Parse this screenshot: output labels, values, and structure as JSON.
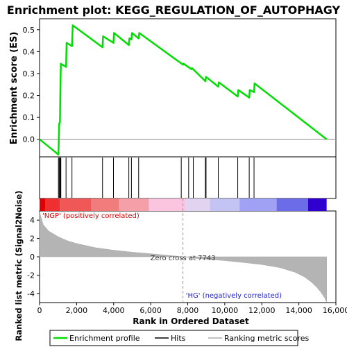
{
  "chart_data": {
    "type": "line",
    "title": "Enrichment plot: KEGG_REGULATION_OF_AUTOPHAGY",
    "xlabel": "Rank in Ordered Dataset",
    "ylabel_top": "Enrichment score (ES)",
    "ylabel_bottom": "Ranked list metric (Signal2Noise)",
    "xlim": [
      0,
      16000
    ],
    "x_ticks": [
      0,
      2000,
      4000,
      6000,
      8000,
      10000,
      12000,
      14000,
      16000
    ],
    "x_tick_labels": [
      "0",
      "2,000",
      "4,000",
      "6,000",
      "8,000",
      "10,000",
      "12,000",
      "14,000",
      "16,000"
    ],
    "es_ylim": [
      -0.08,
      0.55
    ],
    "es_ticks": [
      0.0,
      0.1,
      0.2,
      0.3,
      0.4,
      0.5
    ],
    "es_tick_labels": [
      "0.0",
      "0.1",
      "0.2",
      "0.3",
      "0.4",
      "0.5"
    ],
    "metric_ylim": [
      -5,
      5
    ],
    "metric_ticks": [
      -4,
      -2,
      0,
      2,
      4
    ],
    "metric_tick_labels": [
      "-4",
      "-2",
      "0",
      "2",
      "4"
    ],
    "series": [
      {
        "name": "Enrichment profile",
        "color": "#00dd00",
        "x": [
          0,
          1020,
          1060,
          1100,
          1120,
          1150,
          1430,
          1460,
          1750,
          1790,
          3400,
          3430,
          3990,
          4020,
          4820,
          4850,
          4960,
          4990,
          5350,
          5380,
          7750,
          7780,
          8200,
          8230,
          8950,
          8990,
          9650,
          9680,
          10700,
          10730,
          11320,
          11350,
          11580,
          11610,
          15500
        ],
        "y": [
          0.0,
          -0.07,
          0.07,
          0.08,
          0.21,
          0.345,
          0.33,
          0.44,
          0.425,
          0.52,
          0.42,
          0.47,
          0.44,
          0.485,
          0.43,
          0.46,
          0.455,
          0.485,
          0.46,
          0.485,
          0.34,
          0.345,
          0.32,
          0.325,
          0.265,
          0.285,
          0.24,
          0.26,
          0.195,
          0.225,
          0.19,
          0.225,
          0.215,
          0.255,
          0.0
        ]
      }
    ],
    "hits": [
      1020,
      1060,
      1100,
      1120,
      1150,
      1430,
      1750,
      3400,
      3990,
      4820,
      4960,
      5350,
      7650,
      8050,
      8300,
      8950,
      8990,
      9650,
      10700,
      11320,
      11580
    ],
    "metric_curve": {
      "x": [
        0,
        200,
        500,
        1000,
        1500,
        2000,
        3000,
        4000,
        5000,
        6000,
        7000,
        7743,
        8500,
        10000,
        11000,
        12000,
        13000,
        13800,
        14300,
        14700,
        15000,
        15200,
        15400,
        15500
      ],
      "y": [
        4.9,
        3.5,
        2.8,
        2.2,
        1.75,
        1.45,
        1.0,
        0.72,
        0.5,
        0.33,
        0.15,
        0.0,
        -0.18,
        -0.42,
        -0.62,
        -0.85,
        -1.2,
        -1.7,
        -2.2,
        -2.8,
        -3.4,
        -3.9,
        -4.5,
        -5.0
      ]
    },
    "zero_cross_label": "Zero cross at 7743",
    "zero_cross_x": 7743,
    "pos_label": "'NGP' (positively correlated)",
    "neg_label": "'HG' (negatively correlated)",
    "legend": [
      {
        "label": "Enrichment profile",
        "color": "#00dd00"
      },
      {
        "label": "Hits",
        "color": "#000000"
      },
      {
        "label": "Ranking metric scores",
        "color": "#c0c0c0"
      }
    ],
    "legend_placement": "bottom",
    "heat_bar": [
      {
        "x0": 0,
        "x1": 300,
        "color": "#e00000"
      },
      {
        "x0": 300,
        "x1": 1100,
        "color": "#f03030"
      },
      {
        "x0": 1100,
        "x1": 2800,
        "color": "#f05858"
      },
      {
        "x0": 2800,
        "x1": 4300,
        "color": "#f07c7c"
      },
      {
        "x0": 4300,
        "x1": 5900,
        "color": "#f5a0a8"
      },
      {
        "x0": 5900,
        "x1": 7900,
        "color": "#fbc4df"
      },
      {
        "x0": 7900,
        "x1": 9200,
        "color": "#e0d4f0"
      },
      {
        "x0": 9200,
        "x1": 10800,
        "color": "#c4c4f4"
      },
      {
        "x0": 10800,
        "x1": 12800,
        "color": "#a0a0f4"
      },
      {
        "x0": 12800,
        "x1": 14500,
        "color": "#6c6ce8"
      },
      {
        "x0": 14500,
        "x1": 15500,
        "color": "#3000d0"
      }
    ]
  }
}
